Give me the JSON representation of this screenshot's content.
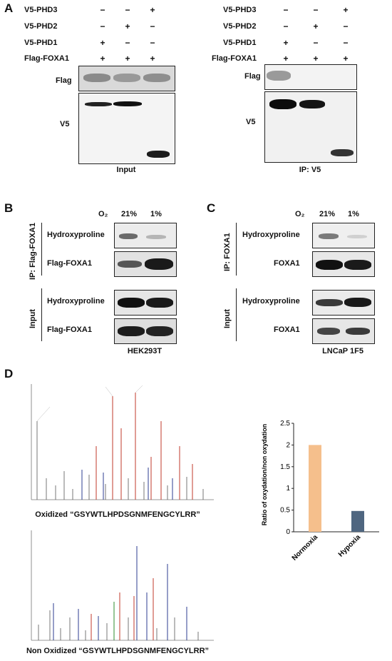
{
  "panels": {
    "A": "A",
    "B": "B",
    "C": "C",
    "D": "D"
  },
  "panel_a": {
    "row_labels": [
      "V5-PHD3",
      "V5-PHD2",
      "V5-PHD1",
      "Flag-FOXA1"
    ],
    "signs": [
      [
        "−",
        "−",
        "+"
      ],
      [
        "−",
        "+",
        "−"
      ],
      [
        "+",
        "−",
        "−"
      ],
      [
        "+",
        "+",
        "+"
      ]
    ],
    "left": {
      "blot_top": "Flag",
      "blot_bottom": "V5",
      "caption": "Input"
    },
    "right": {
      "blot_top": "Flag",
      "blot_bottom": "V5",
      "caption": "IP: V5"
    }
  },
  "panel_b": {
    "o2": "O₂",
    "cond1": "21%",
    "cond2": "1%",
    "ip_label": "IP: Flag-FOXA1",
    "input_label": "Input",
    "rows": [
      "Hydroxyproline",
      "Flag-FOXA1",
      "Hydroxyproline",
      "Flag-FOXA1"
    ],
    "caption": "HEK293T"
  },
  "panel_c": {
    "o2": "O₂",
    "cond1": "21%",
    "cond2": "1%",
    "ip_label": "IP: FOXA1",
    "input_label": "Input",
    "rows": [
      "Hydroxyproline",
      "FOXA1",
      "Hydroxyproline",
      "FOXA1"
    ],
    "caption": "LNCaP 1F5"
  },
  "panel_d": {
    "spectrum1_caption": "Oxidized “GSYWTLHPDSGNMFENGCYLRR”",
    "spectrum2_caption": "Non Oxidized “GSYWTLHPDSGNMFENGCYLRR”"
  },
  "colors": {
    "normoxia": "#f5bf8c",
    "hypoxia": "#4f6680"
  },
  "chart_data": {
    "type": "bar",
    "categories": [
      "Normoxia",
      "Hypoxia"
    ],
    "values": [
      2.0,
      0.48
    ],
    "ylabel": "Ratio of oxydation/non oxydation",
    "ylim": [
      0,
      2.5
    ],
    "yticks": [
      0,
      0.5,
      1,
      1.5,
      2,
      2.5
    ],
    "ytick_labels": [
      "0",
      "0.5",
      "1",
      "1.5",
      "2",
      "2.5"
    ]
  }
}
